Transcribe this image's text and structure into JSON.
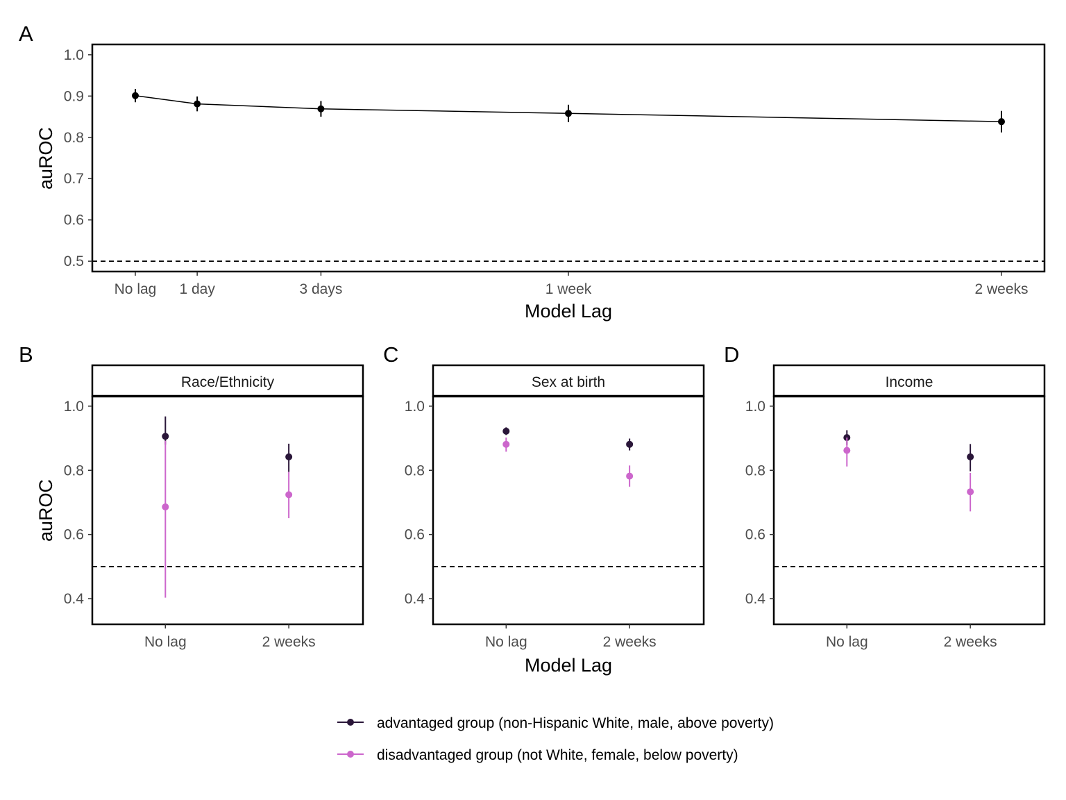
{
  "chart_data": [
    {
      "panel": "A",
      "type": "line",
      "xlabel": "Model Lag",
      "ylabel": "auROC",
      "x": [
        "No lag",
        "1 day",
        "3 days",
        "1 week",
        "2 weeks"
      ],
      "x_days": [
        0,
        1,
        3,
        7,
        14
      ],
      "ylim": [
        0.475,
        1.025
      ],
      "yticks": [
        "0.5",
        "0.6",
        "0.7",
        "0.8",
        "0.9",
        "1.0"
      ],
      "reference_line": 0.5,
      "grid": false,
      "series": [
        {
          "values": [
            0.901,
            0.881,
            0.869,
            0.858,
            0.838
          ],
          "lower": [
            0.885,
            0.863,
            0.85,
            0.837,
            0.812
          ],
          "upper": [
            0.917,
            0.899,
            0.888,
            0.879,
            0.864
          ]
        }
      ]
    },
    {
      "panel": "B",
      "type": "scatter",
      "strip": "Race/Ethnicity",
      "ylabel": "auROC",
      "categories": [
        "No lag",
        "2 weeks"
      ],
      "ylim": [
        0.32,
        1.03
      ],
      "yticks": [
        "0.4",
        "0.6",
        "0.8",
        "1.0"
      ],
      "reference_line": 0.5,
      "series": [
        {
          "values": [
            0.906,
            0.842
          ],
          "lower": [
            0.88,
            0.795
          ],
          "upper": [
            0.968,
            0.883
          ]
        },
        {
          "values": [
            0.686,
            0.724
          ],
          "lower": [
            0.403,
            0.651
          ],
          "upper": [
            0.892,
            0.795
          ]
        }
      ]
    },
    {
      "panel": "C",
      "type": "scatter",
      "strip": "Sex at birth",
      "xlabel": "Model Lag",
      "categories": [
        "No lag",
        "2 weeks"
      ],
      "ylim": [
        0.32,
        1.03
      ],
      "yticks": [
        "0.4",
        "0.6",
        "0.8",
        "1.0"
      ],
      "reference_line": 0.5,
      "series": [
        {
          "values": [
            0.922,
            0.881
          ],
          "lower": [
            0.91,
            0.862
          ],
          "upper": [
            0.934,
            0.899
          ]
        },
        {
          "values": [
            0.881,
            0.782
          ],
          "lower": [
            0.858,
            0.749
          ],
          "upper": [
            0.902,
            0.815
          ]
        }
      ]
    },
    {
      "panel": "D",
      "type": "scatter",
      "strip": "Income",
      "categories": [
        "No lag",
        "2 weeks"
      ],
      "ylim": [
        0.32,
        1.03
      ],
      "yticks": [
        "0.4",
        "0.6",
        "0.8",
        "1.0"
      ],
      "reference_line": 0.5,
      "series": [
        {
          "values": [
            0.902,
            0.842
          ],
          "lower": [
            0.879,
            0.797
          ],
          "upper": [
            0.925,
            0.882
          ]
        },
        {
          "values": [
            0.862,
            0.733
          ],
          "lower": [
            0.812,
            0.672
          ],
          "upper": [
            0.902,
            0.792
          ]
        }
      ]
    }
  ],
  "legend": {
    "placement": "bottom-center",
    "items": [
      {
        "label": "advantaged group (non-Hispanic White, male, above poverty)",
        "color": "#2a1639"
      },
      {
        "label": "disadvantaged group (not White, female, below poverty)",
        "color": "#cc66cc"
      }
    ]
  },
  "colors": {
    "line_a": "#000000",
    "reference": "#000000"
  }
}
